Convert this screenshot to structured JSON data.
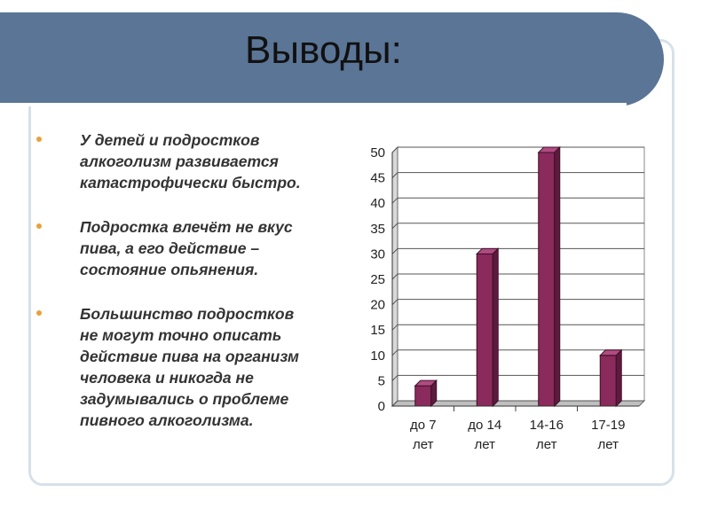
{
  "slide": {
    "title": "Выводы:",
    "bullets": [
      {
        "text": "У детей и подростков\nалкоголизм развивается\nкатастрофически быстро."
      },
      {
        "text": "Подростка влечёт не вкус\nпива, а его действие –\nсостояние опьянения."
      },
      {
        "text": "Большинство подростков\nне могут точно описать\nдействие пива на организм\nчеловека и никогда не\nзадумывались о проблеме\nпивного алкоголизма."
      }
    ],
    "colors": {
      "title_bar": "#5a7596",
      "bullet": "#e8a13c",
      "bar": "#8b2a5c"
    }
  },
  "chart_data": {
    "type": "bar",
    "categories": [
      [
        "до 7",
        "лет"
      ],
      [
        "до 14",
        "лет"
      ],
      [
        "14-16",
        "лет"
      ],
      [
        "17-19",
        "лет"
      ]
    ],
    "values": [
      4,
      30,
      50,
      10
    ],
    "ylim": [
      0,
      50
    ],
    "yticks": [
      "0",
      "5",
      "10",
      "15",
      "20",
      "25",
      "30",
      "35",
      "40",
      "45",
      "50"
    ],
    "grid": true,
    "legend": "none",
    "style": "3d"
  }
}
